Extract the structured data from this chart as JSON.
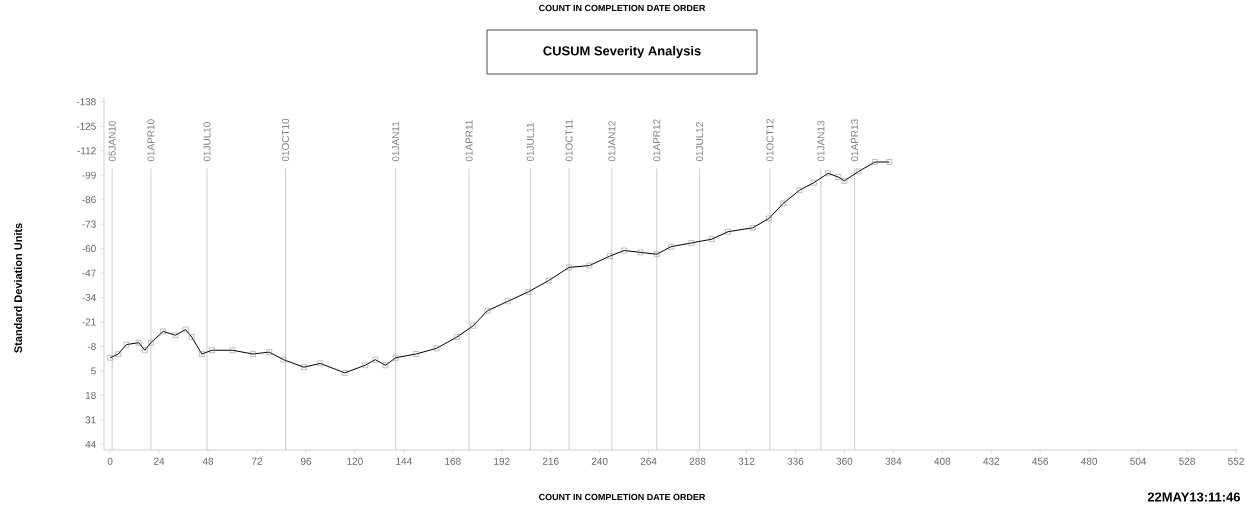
{
  "chart_data": {
    "type": "line",
    "title": "CUSUM Severity Analysis",
    "xlabel": "COUNT IN COMPLETION DATE ORDER",
    "ylabel": "Standard Deviation Units",
    "annotations": [
      "COUNT IN COMPLETION DATE ORDER",
      "22MAY13:11:46"
    ],
    "xlim": [
      -3,
      553
    ],
    "ylim": [
      47,
      -140
    ],
    "xticks": [
      0,
      24,
      48,
      72,
      96,
      120,
      144,
      168,
      192,
      216,
      240,
      264,
      288,
      312,
      336,
      360,
      384,
      408,
      432,
      456,
      480,
      504,
      528,
      552
    ],
    "yticks": [
      -138,
      -125,
      -112,
      -99,
      -86,
      -73,
      -60,
      -47,
      -34,
      -21,
      -8,
      5,
      18,
      31,
      44
    ],
    "marker": "square",
    "series": [
      {
        "color": "#000000",
        "x": [
          0,
          4,
          8,
          14,
          17,
          20,
          26,
          32,
          37,
          40,
          45,
          50,
          60,
          70,
          78,
          85,
          95,
          103,
          115,
          125,
          130,
          135,
          140,
          150,
          160,
          170,
          178,
          185,
          195,
          205,
          215,
          225,
          235,
          245,
          252,
          260,
          268,
          275,
          285,
          295,
          303,
          315,
          323,
          330,
          338,
          345,
          352,
          357,
          360,
          367,
          375,
          382
        ],
        "values": [
          -2,
          -4,
          -9,
          -10,
          -6,
          -10,
          -16,
          -14,
          -17,
          -13,
          -4,
          -6,
          -6,
          -4,
          -5,
          -1,
          3,
          1,
          6,
          2,
          -1,
          2,
          -2,
          -4,
          -7,
          -13,
          -19,
          -27,
          -32,
          -37,
          -43,
          -50,
          -51,
          -56,
          -59,
          -58,
          -57,
          -61,
          -63,
          -65,
          -69,
          -71,
          -76,
          -84,
          -91,
          -95,
          -100,
          -98,
          -96,
          -101,
          -106,
          -106
        ]
      }
    ],
    "ref_lines": [
      {
        "axis": "x",
        "value": 1,
        "label": "05JAN10",
        "color": "#808080"
      },
      {
        "axis": "x",
        "value": 20,
        "label": "01APR10",
        "color": "#808080"
      },
      {
        "axis": "x",
        "value": 47.5,
        "label": "01JUL10",
        "color": "#808080"
      },
      {
        "axis": "x",
        "value": 86,
        "label": "01OCT10",
        "color": "#808080"
      },
      {
        "axis": "x",
        "value": 140,
        "label": "01JAN11",
        "color": "#808080"
      },
      {
        "axis": "x",
        "value": 176,
        "label": "01APR11",
        "color": "#808080"
      },
      {
        "axis": "x",
        "value": 206,
        "label": "01JUL11",
        "color": "#808080"
      },
      {
        "axis": "x",
        "value": 225,
        "label": "01OCT11",
        "color": "#808080"
      },
      {
        "axis": "x",
        "value": 246,
        "label": "01JAN12",
        "color": "#808080"
      },
      {
        "axis": "x",
        "value": 268,
        "label": "01APR12",
        "color": "#808080"
      },
      {
        "axis": "x",
        "value": 289,
        "label": "01JUL12",
        "color": "#808080"
      },
      {
        "axis": "x",
        "value": 323.5,
        "label": "01OCT12",
        "color": "#808080"
      },
      {
        "axis": "x",
        "value": 348.5,
        "label": "01JAN13",
        "color": "#808080"
      },
      {
        "axis": "x",
        "value": 365,
        "label": "01APR13",
        "color": "#808080"
      }
    ]
  }
}
